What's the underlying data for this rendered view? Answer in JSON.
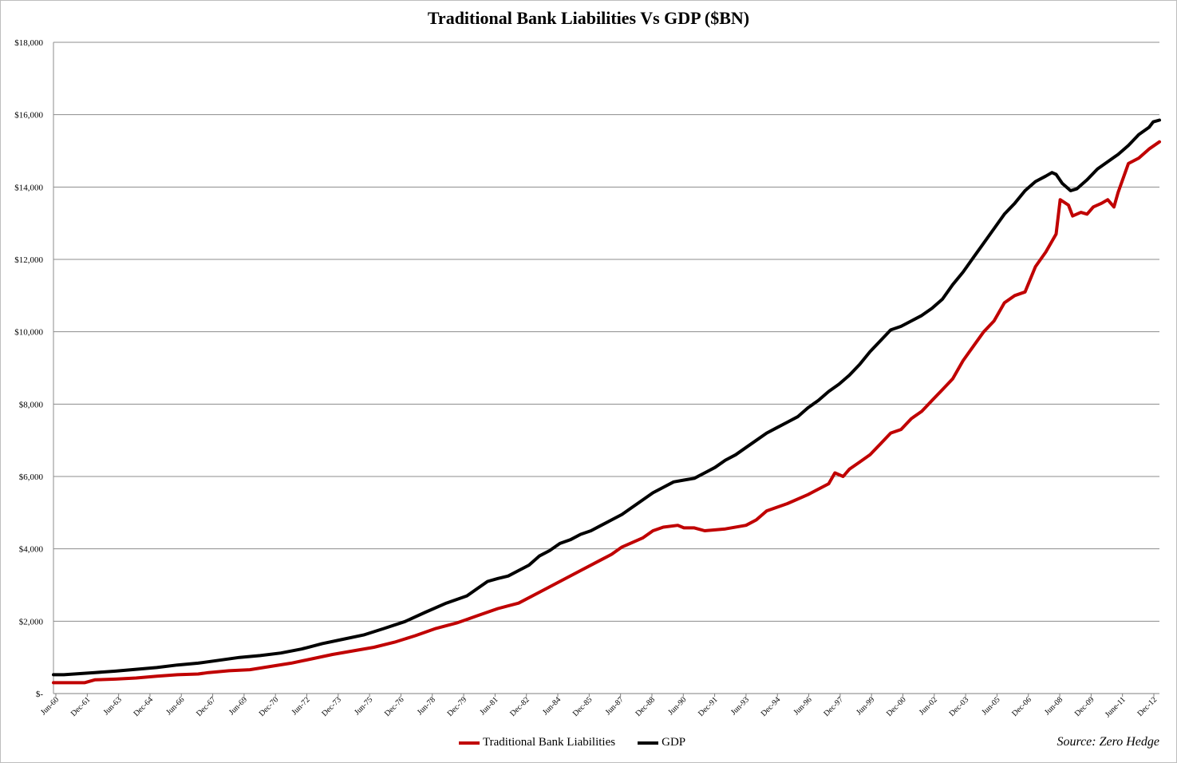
{
  "chart_data": {
    "type": "line",
    "title": "Traditional Bank Liabilities Vs GDP ($BN)",
    "xlabel": "",
    "ylabel": "",
    "source": "Source: Zero Hedge",
    "ylim": [
      0,
      18000
    ],
    "yticks": [
      0,
      2000,
      4000,
      6000,
      8000,
      10000,
      12000,
      14000,
      16000,
      18000
    ],
    "ytick_labels": [
      "$-",
      "$2,000",
      "$4,000",
      "$6,000",
      "$8,000",
      "$10,000",
      "$12,000",
      "$14,000",
      "$16,000",
      "$18,000"
    ],
    "x_tick_labels": [
      "Jun-60",
      "Dec-61",
      "Jun-63",
      "Dec-64",
      "Jun-66",
      "Dec-67",
      "Jun-69",
      "Dec-70",
      "Jun-72",
      "Dec-73",
      "Jun-75",
      "Dec-76",
      "Jun-78",
      "Dec-79",
      "Jun-81",
      "Dec-82",
      "Jun-84",
      "Dec-85",
      "Jun-87",
      "Dec-88",
      "Jun-90",
      "Dec-91",
      "Jun-93",
      "Dec-94",
      "Jun-96",
      "Dec-97",
      "Jun-99",
      "Dec-00",
      "Jun-02",
      "Dec-03",
      "Jun-05",
      "Dec-06",
      "Jun-08",
      "Dec-09",
      "June-11",
      "Dec-12"
    ],
    "x_start_year": 1960.5,
    "x_end_year": 2013.0,
    "grid": "horizontal",
    "legend_position": "bottom",
    "series": [
      {
        "name": "Traditional Bank Liabilities",
        "color": "#c00000",
        "points": [
          [
            1960.5,
            300
          ],
          [
            1961.5,
            300
          ],
          [
            1962.0,
            300
          ],
          [
            1962.5,
            380
          ],
          [
            1963.5,
            400
          ],
          [
            1964.5,
            430
          ],
          [
            1965.5,
            480
          ],
          [
            1966.5,
            520
          ],
          [
            1967.5,
            540
          ],
          [
            1968.0,
            580
          ],
          [
            1969.0,
            630
          ],
          [
            1970.0,
            660
          ],
          [
            1971.0,
            750
          ],
          [
            1972.0,
            840
          ],
          [
            1973.0,
            960
          ],
          [
            1974.0,
            1080
          ],
          [
            1975.0,
            1180
          ],
          [
            1976.0,
            1280
          ],
          [
            1977.0,
            1420
          ],
          [
            1978.0,
            1600
          ],
          [
            1979.0,
            1800
          ],
          [
            1980.0,
            1950
          ],
          [
            1980.5,
            2050
          ],
          [
            1981.0,
            2150
          ],
          [
            1982.0,
            2350
          ],
          [
            1983.0,
            2500
          ],
          [
            1984.0,
            2800
          ],
          [
            1985.0,
            3100
          ],
          [
            1986.0,
            3400
          ],
          [
            1987.0,
            3700
          ],
          [
            1987.5,
            3850
          ],
          [
            1988.0,
            4050
          ],
          [
            1989.0,
            4300
          ],
          [
            1989.5,
            4500
          ],
          [
            1990.0,
            4600
          ],
          [
            1990.7,
            4650
          ],
          [
            1991.0,
            4580
          ],
          [
            1991.5,
            4580
          ],
          [
            1992.0,
            4500
          ],
          [
            1993.0,
            4550
          ],
          [
            1994.0,
            4650
          ],
          [
            1994.5,
            4800
          ],
          [
            1995.0,
            5050
          ],
          [
            1996.0,
            5250
          ],
          [
            1997.0,
            5500
          ],
          [
            1998.0,
            5800
          ],
          [
            1998.3,
            6100
          ],
          [
            1998.7,
            6000
          ],
          [
            1999.0,
            6200
          ],
          [
            1999.5,
            6400
          ],
          [
            2000.0,
            6600
          ],
          [
            2000.5,
            6900
          ],
          [
            2001.0,
            7200
          ],
          [
            2001.5,
            7300
          ],
          [
            2002.0,
            7600
          ],
          [
            2002.5,
            7800
          ],
          [
            2003.0,
            8100
          ],
          [
            2003.5,
            8400
          ],
          [
            2004.0,
            8700
          ],
          [
            2004.5,
            9200
          ],
          [
            2005.0,
            9600
          ],
          [
            2005.5,
            10000
          ],
          [
            2006.0,
            10300
          ],
          [
            2006.5,
            10800
          ],
          [
            2007.0,
            11000
          ],
          [
            2007.5,
            11100
          ],
          [
            2008.0,
            11800
          ],
          [
            2008.5,
            12200
          ],
          [
            2009.0,
            12700
          ],
          [
            2009.2,
            13650
          ],
          [
            2009.6,
            13500
          ],
          [
            2009.8,
            13200
          ],
          [
            2010.2,
            13300
          ],
          [
            2010.5,
            13250
          ],
          [
            2010.8,
            13450
          ],
          [
            2011.2,
            13550
          ],
          [
            2011.5,
            13650
          ],
          [
            2011.8,
            13450
          ],
          [
            2012.0,
            13850
          ],
          [
            2012.5,
            14650
          ],
          [
            2013.0,
            14800
          ],
          [
            2013.5,
            15050
          ],
          [
            2014.0,
            15250
          ]
        ]
      },
      {
        "name": "GDP",
        "color": "#000000",
        "points": [
          [
            1960.5,
            520
          ],
          [
            1961.0,
            520
          ],
          [
            1961.5,
            540
          ],
          [
            1962.5,
            580
          ],
          [
            1963.5,
            620
          ],
          [
            1964.5,
            670
          ],
          [
            1965.5,
            720
          ],
          [
            1966.5,
            790
          ],
          [
            1967.5,
            840
          ],
          [
            1968.5,
            920
          ],
          [
            1969.5,
            1000
          ],
          [
            1970.5,
            1050
          ],
          [
            1971.5,
            1120
          ],
          [
            1972.5,
            1230
          ],
          [
            1973.5,
            1380
          ],
          [
            1974.5,
            1500
          ],
          [
            1975.5,
            1620
          ],
          [
            1976.5,
            1800
          ],
          [
            1977.5,
            1990
          ],
          [
            1978.5,
            2250
          ],
          [
            1979.5,
            2500
          ],
          [
            1980.5,
            2700
          ],
          [
            1981.0,
            2900
          ],
          [
            1981.5,
            3100
          ],
          [
            1982.0,
            3180
          ],
          [
            1982.5,
            3250
          ],
          [
            1983.0,
            3400
          ],
          [
            1983.5,
            3550
          ],
          [
            1984.0,
            3800
          ],
          [
            1984.5,
            3950
          ],
          [
            1985.0,
            4150
          ],
          [
            1985.5,
            4250
          ],
          [
            1986.0,
            4400
          ],
          [
            1986.5,
            4500
          ],
          [
            1987.0,
            4650
          ],
          [
            1987.5,
            4800
          ],
          [
            1988.0,
            4950
          ],
          [
            1988.5,
            5150
          ],
          [
            1989.0,
            5350
          ],
          [
            1989.5,
            5550
          ],
          [
            1990.0,
            5700
          ],
          [
            1990.5,
            5850
          ],
          [
            1991.0,
            5900
          ],
          [
            1991.5,
            5950
          ],
          [
            1992.0,
            6100
          ],
          [
            1992.5,
            6250
          ],
          [
            1993.0,
            6450
          ],
          [
            1993.5,
            6600
          ],
          [
            1994.0,
            6800
          ],
          [
            1994.5,
            7000
          ],
          [
            1995.0,
            7200
          ],
          [
            1995.5,
            7350
          ],
          [
            1996.0,
            7500
          ],
          [
            1996.5,
            7650
          ],
          [
            1997.0,
            7900
          ],
          [
            1997.5,
            8100
          ],
          [
            1998.0,
            8350
          ],
          [
            1998.5,
            8550
          ],
          [
            1999.0,
            8800
          ],
          [
            1999.5,
            9100
          ],
          [
            2000.0,
            9450
          ],
          [
            2000.5,
            9750
          ],
          [
            2001.0,
            10050
          ],
          [
            2001.5,
            10150
          ],
          [
            2002.0,
            10300
          ],
          [
            2002.5,
            10450
          ],
          [
            2003.0,
            10650
          ],
          [
            2003.5,
            10900
          ],
          [
            2004.0,
            11300
          ],
          [
            2004.5,
            11650
          ],
          [
            2005.0,
            12050
          ],
          [
            2005.5,
            12450
          ],
          [
            2006.0,
            12850
          ],
          [
            2006.5,
            13250
          ],
          [
            2007.0,
            13550
          ],
          [
            2007.5,
            13900
          ],
          [
            2008.0,
            14150
          ],
          [
            2008.5,
            14300
          ],
          [
            2008.8,
            14400
          ],
          [
            2009.0,
            14350
          ],
          [
            2009.3,
            14100
          ],
          [
            2009.7,
            13900
          ],
          [
            2010.0,
            13950
          ],
          [
            2010.5,
            14200
          ],
          [
            2011.0,
            14500
          ],
          [
            2011.5,
            14700
          ],
          [
            2012.0,
            14900
          ],
          [
            2012.5,
            15150
          ],
          [
            2013.0,
            15450
          ],
          [
            2013.5,
            15650
          ],
          [
            2013.7,
            15800
          ],
          [
            2014.0,
            15850
          ]
        ]
      }
    ]
  }
}
